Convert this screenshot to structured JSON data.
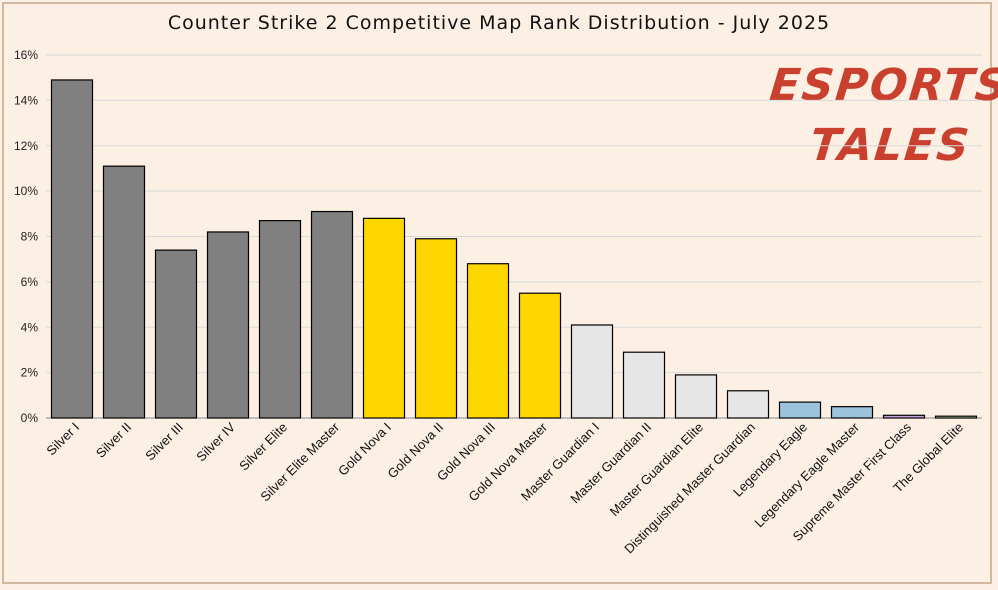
{
  "title": "Counter Strike 2 Competitive Map Rank Distribution - July 2025",
  "logo": {
    "line1": "ESPORTS",
    "line2": "TALES"
  },
  "chart_data": {
    "type": "bar",
    "title": "Counter Strike 2 Competitive Map Rank Distribution - July 2025",
    "xlabel": "",
    "ylabel": "",
    "ylim": [
      0,
      16
    ],
    "y_tick_values": [
      0,
      2,
      4,
      6,
      8,
      10,
      12,
      14,
      16
    ],
    "y_tick_labels": [
      "0%",
      "2%",
      "4%",
      "6%",
      "8%",
      "10%",
      "12%",
      "14%",
      "16%"
    ],
    "grid": true,
    "legend": "none",
    "categories": [
      "Silver I",
      "Silver II",
      "Silver III",
      "Silver IV",
      "Silver Elite",
      "Silver Elite Master",
      "Gold Nova I",
      "Gold Nova II",
      "Gold Nova III",
      "Gold Nova Master",
      "Master Guardian I",
      "Master Guardian II",
      "Master Guardian Elite",
      "Distinguished Master Guardian",
      "Legendary Eagle",
      "Legendary Eagle Master",
      "Supreme Master First Class",
      "The Global Elite"
    ],
    "values": [
      14.9,
      11.1,
      7.4,
      8.2,
      8.7,
      9.1,
      8.8,
      7.9,
      6.8,
      5.5,
      4.1,
      2.9,
      1.9,
      1.2,
      0.7,
      0.5,
      0.12,
      0.08
    ],
    "colors": [
      "#808080",
      "#808080",
      "#808080",
      "#808080",
      "#808080",
      "#808080",
      "#ffd700",
      "#ffd700",
      "#ffd700",
      "#ffd700",
      "#e6e6e6",
      "#e6e6e6",
      "#e6e6e6",
      "#e6e6e6",
      "#9cc3dc",
      "#9cc3dc",
      "#c9a0dc",
      "#c6e0b4"
    ]
  }
}
